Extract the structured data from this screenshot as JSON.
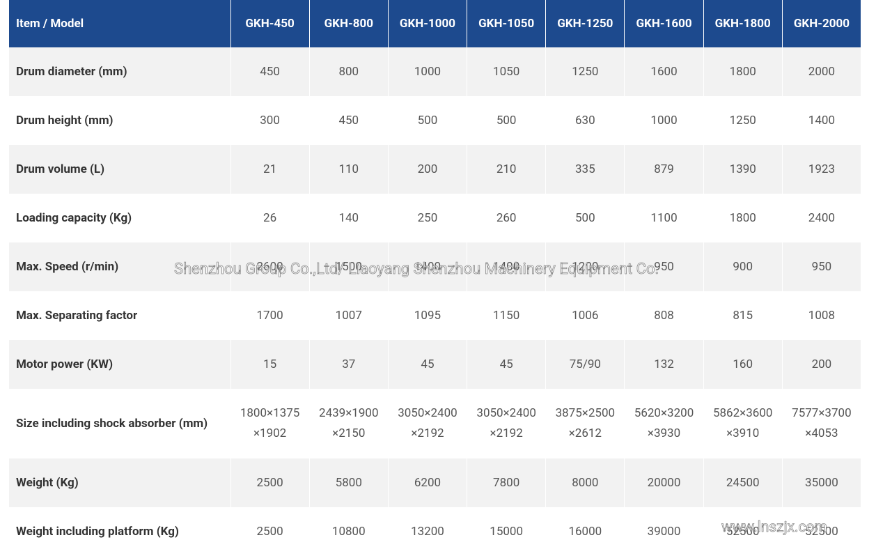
{
  "table": {
    "header": [
      "Item / Model",
      "GKH-450",
      "GKH-800",
      "GKH-1000",
      "GKH-1050",
      "GKH-1250",
      "GKH-1600",
      "GKH-1800",
      "GKH-2000"
    ],
    "rows": [
      {
        "label": "Drum diameter (mm)",
        "cells": [
          "450",
          "800",
          "1000",
          "1050",
          "1250",
          "1600",
          "1800",
          "2000"
        ]
      },
      {
        "label": "Drum height (mm)",
        "cells": [
          "300",
          "450",
          "500",
          "500",
          "630",
          "1000",
          "1250",
          "1400"
        ]
      },
      {
        "label": "Drum volume (L)",
        "cells": [
          "21",
          "110",
          "200",
          "210",
          "335",
          "879",
          "1390",
          "1923"
        ]
      },
      {
        "label": "Loading capacity (Kg)",
        "cells": [
          "26",
          "140",
          "250",
          "260",
          "500",
          "1100",
          "1800",
          "2400"
        ]
      },
      {
        "label": "Max. Speed (r/min)",
        "cells": [
          "2600",
          "1500",
          "1400",
          "1400",
          "1200",
          "950",
          "900",
          "950"
        ]
      },
      {
        "label": "Max. Separating factor",
        "cells": [
          "1700",
          "1007",
          "1095",
          "1150",
          "1006",
          "808",
          "815",
          "1008"
        ]
      },
      {
        "label": "Motor power (KW)",
        "cells": [
          "15",
          "37",
          "45",
          "45",
          "75/90",
          "132",
          "160",
          "200"
        ]
      },
      {
        "label": "Size including shock absorber (mm)",
        "cells": [
          [
            "1800×1375",
            "×1902"
          ],
          [
            "2439×1900",
            "×2150"
          ],
          [
            "3050×2400",
            "×2192"
          ],
          [
            "3050×2400",
            "×2192"
          ],
          [
            "3875×2500",
            "×2612"
          ],
          [
            "5620×3200",
            "×3930"
          ],
          [
            "5862×3600",
            "×3910"
          ],
          [
            "7577×3700",
            "×4053"
          ]
        ]
      },
      {
        "label": "Weight (Kg)",
        "cells": [
          "2500",
          "5800",
          "6200",
          "7800",
          "8000",
          "20000",
          "24500",
          "35000"
        ]
      },
      {
        "label": "Weight including platform (Kg)",
        "cells": [
          "2500",
          "10800",
          "13200",
          "15000",
          "16000",
          "39000",
          "52500",
          "52500"
        ]
      }
    ]
  },
  "watermark": {
    "company": "Shenzhou Group Co.,Ltd/ Liaoyang Shenzhou Machinery Equipment Co.",
    "url": "www.lnszjx.com"
  }
}
